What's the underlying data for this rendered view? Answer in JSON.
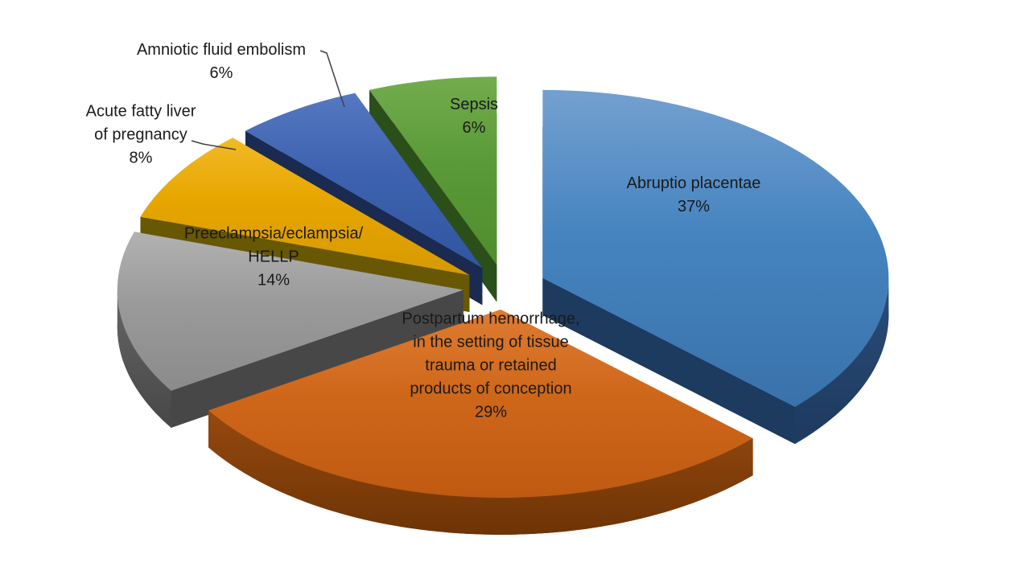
{
  "chart_data": {
    "type": "pie",
    "style": "3d-exploded",
    "title": "",
    "legend": "none",
    "background": "#ffffff",
    "label_color": "#1a1a1a",
    "leader_line_color": "#404040",
    "total": 100,
    "series": [
      {
        "name": "Abruptio placentae",
        "value": 37,
        "percent_label": "37%",
        "label_lines": [
          "Abruptio placentae",
          "37%"
        ],
        "color": "#4584c0",
        "color_light": "#74a0d0",
        "color_dark": "#3a72aa",
        "side": "#1d3a5f",
        "side_light": "#2a4d78"
      },
      {
        "name": "Postpartum hemorrhage, in the setting of tissue trauma or retained products of conception",
        "value": 29,
        "percent_label": "29%",
        "label_lines": [
          "Postpartum hemorrhage,",
          "in the setting of tissue",
          "trauma or retained",
          "products of conception",
          "29%"
        ],
        "color": "#cf671a",
        "color_light": "#de7c31",
        "color_dark": "#bf5a11",
        "side": "#6e3406",
        "side_light": "#96490e"
      },
      {
        "name": "Preeclampsia/eclampsia/HELLP",
        "value": 14,
        "percent_label": "14%",
        "label_lines": [
          "Preeclampsia/eclampsia/",
          "HELLP",
          "14%"
        ],
        "color": "#9a9a9a",
        "color_light": "#b2b2b2",
        "color_dark": "#8b8b8b",
        "side": "#474747",
        "side_light": "#666666"
      },
      {
        "name": "Acute fatty liver of pregnancy",
        "value": 8,
        "percent_label": "8%",
        "label_lines": [
          "Acute fatty liver",
          "of pregnancy",
          "8%"
        ],
        "color": "#e7a600",
        "color_light": "#f1ba25",
        "color_dark": "#d69a00",
        "side": "#685703",
        "side_light": "#8d7606"
      },
      {
        "name": "Amniotic fluid embolism",
        "value": 6,
        "percent_label": "6%",
        "label_lines": [
          "Amniotic fluid embolism",
          "6%"
        ],
        "color": "#3d62af",
        "color_light": "#5578c1",
        "color_dark": "#3156a0",
        "side": "#1a2a50",
        "side_light": "#263a6e"
      },
      {
        "name": "Sepsis",
        "value": 6,
        "percent_label": "6%",
        "label_lines": [
          "Sepsis",
          "6%"
        ],
        "color": "#5b9a38",
        "color_light": "#73ac4e",
        "color_dark": "#4f8c2e",
        "side": "#2b4f18",
        "side_light": "#3b6a23"
      }
    ]
  }
}
